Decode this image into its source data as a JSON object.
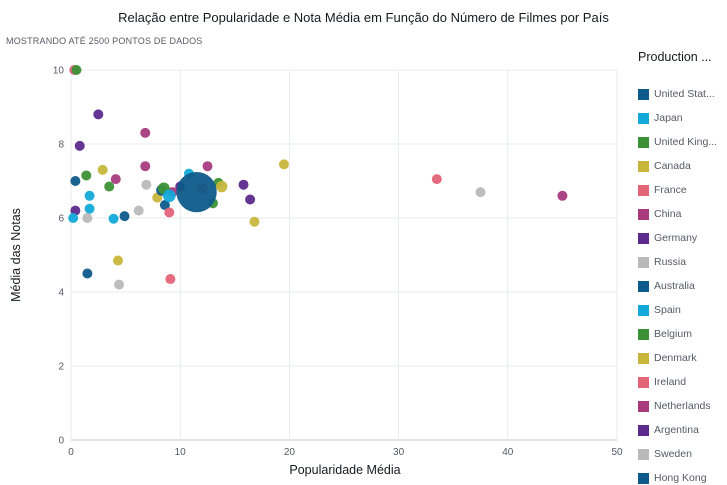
{
  "chart_data": {
    "type": "scatter",
    "title": "Relação entre Popularidade e Nota Média em Função do Número de Filmes por País",
    "subtitle": "MOSTRANDO ATÉ 2500 PONTOS DE DADOS",
    "xlabel": "Popularidade Média",
    "ylabel": "Média das Notas",
    "xlim": [
      0,
      50
    ],
    "ylim": [
      0,
      10
    ],
    "x_ticks": [
      "0",
      "10",
      "20",
      "30",
      "40",
      "50"
    ],
    "y_ticks": [
      "0",
      "2",
      "4",
      "6",
      "8",
      "10"
    ],
    "grid": true,
    "legend": {
      "title": "Production ...",
      "position": "right",
      "items": [
        {
          "label": "United Stat...",
          "color": "#0e5a8a"
        },
        {
          "label": "Japan",
          "color": "#13a9d8"
        },
        {
          "label": "United King...",
          "color": "#3b9136"
        },
        {
          "label": "Canada",
          "color": "#c8b63c"
        },
        {
          "label": "France",
          "color": "#e46478"
        },
        {
          "label": "China",
          "color": "#a83b7e"
        },
        {
          "label": "Germany",
          "color": "#5c2a8c"
        },
        {
          "label": "Russia",
          "color": "#b9b9b9"
        },
        {
          "label": "Australia",
          "color": "#0e5a8a"
        },
        {
          "label": "Spain",
          "color": "#13a9d8"
        },
        {
          "label": "Belgium",
          "color": "#3b9136"
        },
        {
          "label": "Denmark",
          "color": "#c8b63c"
        },
        {
          "label": "Ireland",
          "color": "#e46478"
        },
        {
          "label": "Netherlands",
          "color": "#a83b7e"
        },
        {
          "label": "Argentina",
          "color": "#5c2a8c"
        },
        {
          "label": "Sweden",
          "color": "#b9b9b9"
        },
        {
          "label": "Hong Kong",
          "color": "#0e5a8a"
        }
      ]
    },
    "points": [
      {
        "x": 11.5,
        "y": 6.7,
        "size": 4.5,
        "color": "#0e5a8a"
      },
      {
        "x": 9.0,
        "y": 6.6,
        "size": 1.6,
        "color": "#13a9d8"
      },
      {
        "x": 8.5,
        "y": 6.8,
        "size": 1.4,
        "color": "#3b9136"
      },
      {
        "x": 12.0,
        "y": 6.8,
        "size": 1.3,
        "color": "#e46478"
      },
      {
        "x": 13.8,
        "y": 6.85,
        "size": 1.3,
        "color": "#c8b63c"
      },
      {
        "x": 8.3,
        "y": 6.75,
        "size": 1.2,
        "color": "#0e5a8a"
      },
      {
        "x": 10.0,
        "y": 6.85,
        "size": 1.0,
        "color": "#5c2a8c"
      },
      {
        "x": 9.3,
        "y": 6.7,
        "size": 1.0,
        "color": "#a83b7e"
      },
      {
        "x": 10.8,
        "y": 7.2,
        "size": 1.0,
        "color": "#13a9d8"
      },
      {
        "x": 0.3,
        "y": 10.0,
        "size": 1.0,
        "color": "#e46478"
      },
      {
        "x": 0.5,
        "y": 10.0,
        "size": 1.0,
        "color": "#3b9136"
      },
      {
        "x": 2.5,
        "y": 8.8,
        "size": 1.0,
        "color": "#5c2a8c"
      },
      {
        "x": 6.8,
        "y": 8.3,
        "size": 1.0,
        "color": "#a83b7e"
      },
      {
        "x": 0.8,
        "y": 7.95,
        "size": 1.0,
        "color": "#5c2a8c"
      },
      {
        "x": 19.5,
        "y": 7.45,
        "size": 1.0,
        "color": "#c8b63c"
      },
      {
        "x": 6.8,
        "y": 7.4,
        "size": 1.0,
        "color": "#a83b7e"
      },
      {
        "x": 12.5,
        "y": 7.4,
        "size": 1.0,
        "color": "#a83b7e"
      },
      {
        "x": 2.9,
        "y": 7.3,
        "size": 1.0,
        "color": "#c8b63c"
      },
      {
        "x": 1.4,
        "y": 7.15,
        "size": 1.0,
        "color": "#3b9136"
      },
      {
        "x": 4.1,
        "y": 7.05,
        "size": 1.0,
        "color": "#a83b7e"
      },
      {
        "x": 0.4,
        "y": 7.0,
        "size": 1.0,
        "color": "#0e5a8a"
      },
      {
        "x": 13.5,
        "y": 6.95,
        "size": 1.0,
        "color": "#3b9136"
      },
      {
        "x": 6.9,
        "y": 6.9,
        "size": 1.0,
        "color": "#b9b9b9"
      },
      {
        "x": 3.5,
        "y": 6.85,
        "size": 1.0,
        "color": "#3b9136"
      },
      {
        "x": 15.8,
        "y": 6.9,
        "size": 1.0,
        "color": "#5c2a8c"
      },
      {
        "x": 33.5,
        "y": 7.05,
        "size": 1.0,
        "color": "#e46478"
      },
      {
        "x": 37.5,
        "y": 6.7,
        "size": 1.0,
        "color": "#b9b9b9"
      },
      {
        "x": 45.0,
        "y": 6.6,
        "size": 1.0,
        "color": "#a83b7e"
      },
      {
        "x": 1.7,
        "y": 6.6,
        "size": 1.0,
        "color": "#13a9d8"
      },
      {
        "x": 7.9,
        "y": 6.55,
        "size": 1.0,
        "color": "#c8b63c"
      },
      {
        "x": 16.4,
        "y": 6.5,
        "size": 1.0,
        "color": "#5c2a8c"
      },
      {
        "x": 13.0,
        "y": 6.4,
        "size": 1.0,
        "color": "#3b9136"
      },
      {
        "x": 8.6,
        "y": 6.35,
        "size": 1.0,
        "color": "#0e5a8a"
      },
      {
        "x": 1.7,
        "y": 6.25,
        "size": 1.0,
        "color": "#13a9d8"
      },
      {
        "x": 0.4,
        "y": 6.2,
        "size": 1.0,
        "color": "#5c2a8c"
      },
      {
        "x": 6.2,
        "y": 6.2,
        "size": 1.0,
        "color": "#b9b9b9"
      },
      {
        "x": 9.0,
        "y": 6.15,
        "size": 1.0,
        "color": "#e46478"
      },
      {
        "x": 4.9,
        "y": 6.05,
        "size": 1.0,
        "color": "#0e5a8a"
      },
      {
        "x": 0.2,
        "y": 6.0,
        "size": 1.0,
        "color": "#13a9d8"
      },
      {
        "x": 1.5,
        "y": 6.0,
        "size": 1.0,
        "color": "#b9b9b9"
      },
      {
        "x": 3.9,
        "y": 5.98,
        "size": 1.0,
        "color": "#13a9d8"
      },
      {
        "x": 16.8,
        "y": 5.9,
        "size": 1.0,
        "color": "#c8b63c"
      },
      {
        "x": 4.3,
        "y": 4.85,
        "size": 1.0,
        "color": "#c8b63c"
      },
      {
        "x": 1.5,
        "y": 4.5,
        "size": 1.0,
        "color": "#0e5a8a"
      },
      {
        "x": 9.1,
        "y": 4.35,
        "size": 1.0,
        "color": "#e46478"
      },
      {
        "x": 4.4,
        "y": 4.2,
        "size": 1.0,
        "color": "#b9b9b9"
      }
    ]
  }
}
